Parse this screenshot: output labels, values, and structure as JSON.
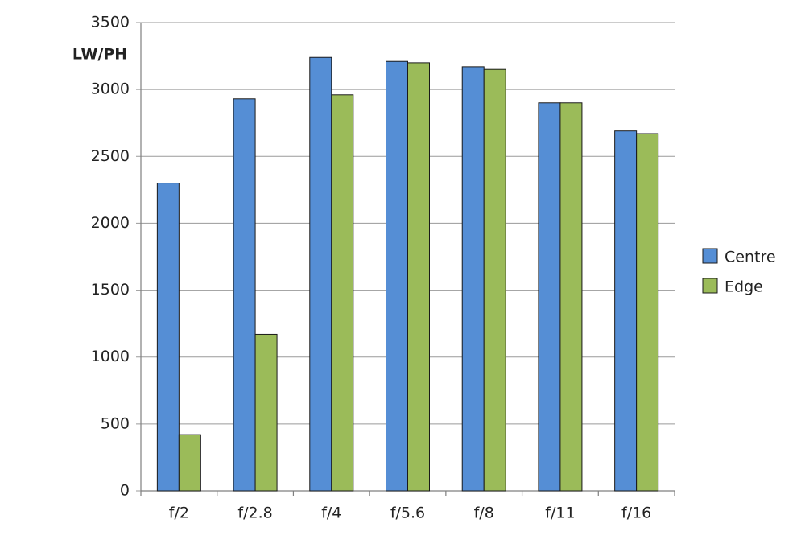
{
  "chart_data": {
    "type": "bar",
    "y_label": "LW/PH",
    "categories": [
      "f/2",
      "f/2.8",
      "f/4",
      "f/5.6",
      "f/8",
      "f/11",
      "f/16"
    ],
    "series": [
      {
        "name": "Centre",
        "color": "#558ed5",
        "values": [
          2300,
          2930,
          3240,
          3210,
          3170,
          2900,
          2690
        ]
      },
      {
        "name": "Edge",
        "color": "#9bbb59",
        "values": [
          420,
          1170,
          2960,
          3200,
          3150,
          2900,
          2670
        ]
      }
    ],
    "ylim": [
      0,
      3500
    ],
    "yticks": [
      0,
      500,
      1000,
      1500,
      2000,
      2500,
      3000,
      3500
    ],
    "grid": true,
    "legend": "right"
  }
}
